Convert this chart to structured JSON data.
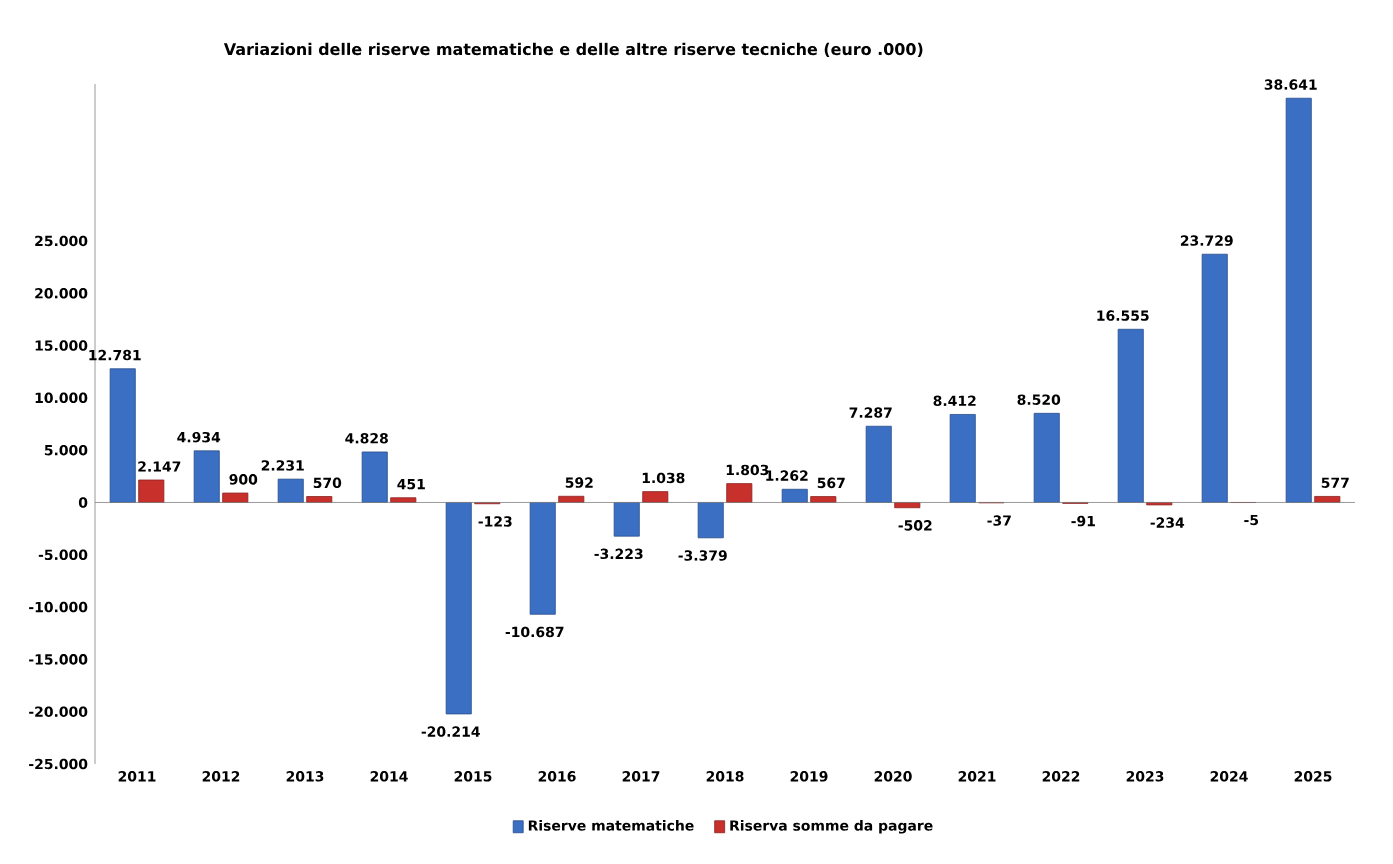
{
  "chart_data": {
    "type": "bar",
    "title": "Variazioni delle riserve matematiche e delle altre riserve tecniche (euro .000)",
    "categories": [
      "2011",
      "2012",
      "2013",
      "2014",
      "2015",
      "2016",
      "2017",
      "2018",
      "2019",
      "2020",
      "2021",
      "2022",
      "2023",
      "2024",
      "2025"
    ],
    "series": [
      {
        "name": "Riserve matematiche",
        "color": "#3a6fc4",
        "values": [
          12781,
          4934,
          2231,
          4828,
          -20214,
          -10687,
          -3223,
          -3379,
          1262,
          7287,
          8412,
          8520,
          16555,
          23729,
          38641
        ],
        "value_labels": [
          "12.781",
          "4.934",
          "2.231",
          "4.828",
          "-20.214",
          "-10.687",
          "-3.223",
          "-3.379",
          "1.262",
          "7.287",
          "8.412",
          "8.520",
          "16.555",
          "23.729",
          "38.641"
        ]
      },
      {
        "name": "Riserva somme da pagare",
        "color": "#c8302c",
        "values": [
          2147,
          900,
          570,
          451,
          -123,
          592,
          1038,
          1803,
          567,
          -502,
          -37,
          -91,
          -234,
          -5,
          577
        ],
        "value_labels": [
          "2.147",
          "900",
          "570",
          "451",
          "-123",
          "592",
          "1.038",
          "1.803",
          "567",
          "-502",
          "-37",
          "-91",
          "-234",
          "-5",
          "577"
        ]
      }
    ],
    "ylim": [
      -25000,
      40000
    ],
    "yticks": [
      {
        "value": -25000,
        "label": "-25.000"
      },
      {
        "value": -20000,
        "label": "-20.000"
      },
      {
        "value": -15000,
        "label": "-15.000"
      },
      {
        "value": -10000,
        "label": "-10.000"
      },
      {
        "value": -5000,
        "label": "-5.000"
      },
      0,
      {
        "value": 5000,
        "label": "5.000"
      },
      {
        "value": 10000,
        "label": "10.000"
      },
      {
        "value": 15000,
        "label": "15.000"
      },
      {
        "value": 20000,
        "label": "20.000"
      },
      {
        "value": 25000,
        "label": "25.000"
      }
    ],
    "legend": "bottom"
  }
}
